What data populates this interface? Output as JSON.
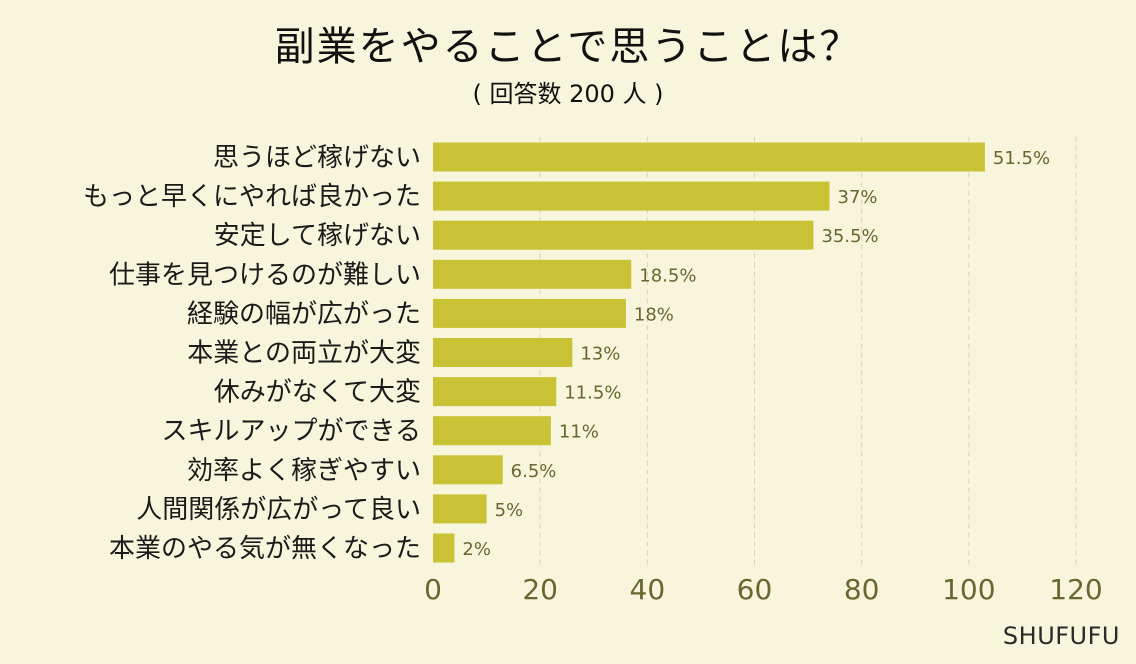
{
  "chart_data": {
    "type": "bar",
    "orientation": "horizontal",
    "title": "副業をやることで思うことは？",
    "subtitle": "( 回答数 200 人 )",
    "categories": [
      "思うほど稼げない",
      "もっと早くにやれば良かった",
      "安定して稼げない",
      "仕事を見つけるのが難しい",
      "経験の幅が広がった",
      "本業との両立が大変",
      "休みがなくて大変",
      "スキルアップができる",
      "効率よく稼ぎやすい",
      "人間関係が広がって良い",
      "本業のやる気が無くなった"
    ],
    "values": [
      103,
      74,
      71,
      37,
      36,
      26,
      23,
      22,
      13,
      10,
      4
    ],
    "data_labels": [
      "51.5%",
      "37%",
      "35.5%",
      "18.5%",
      "18%",
      "13%",
      "11.5%",
      "11%",
      "6.5%",
      "5%",
      "2%"
    ],
    "xlim": [
      0,
      120
    ],
    "xticks": [
      0,
      20,
      40,
      60,
      80,
      100,
      120
    ],
    "grid": "vertical dashed",
    "bar_color": "#c9c234",
    "tick_color": "#6b6530",
    "label_color": "#6b6530"
  },
  "watermark": "SHUFUFU"
}
